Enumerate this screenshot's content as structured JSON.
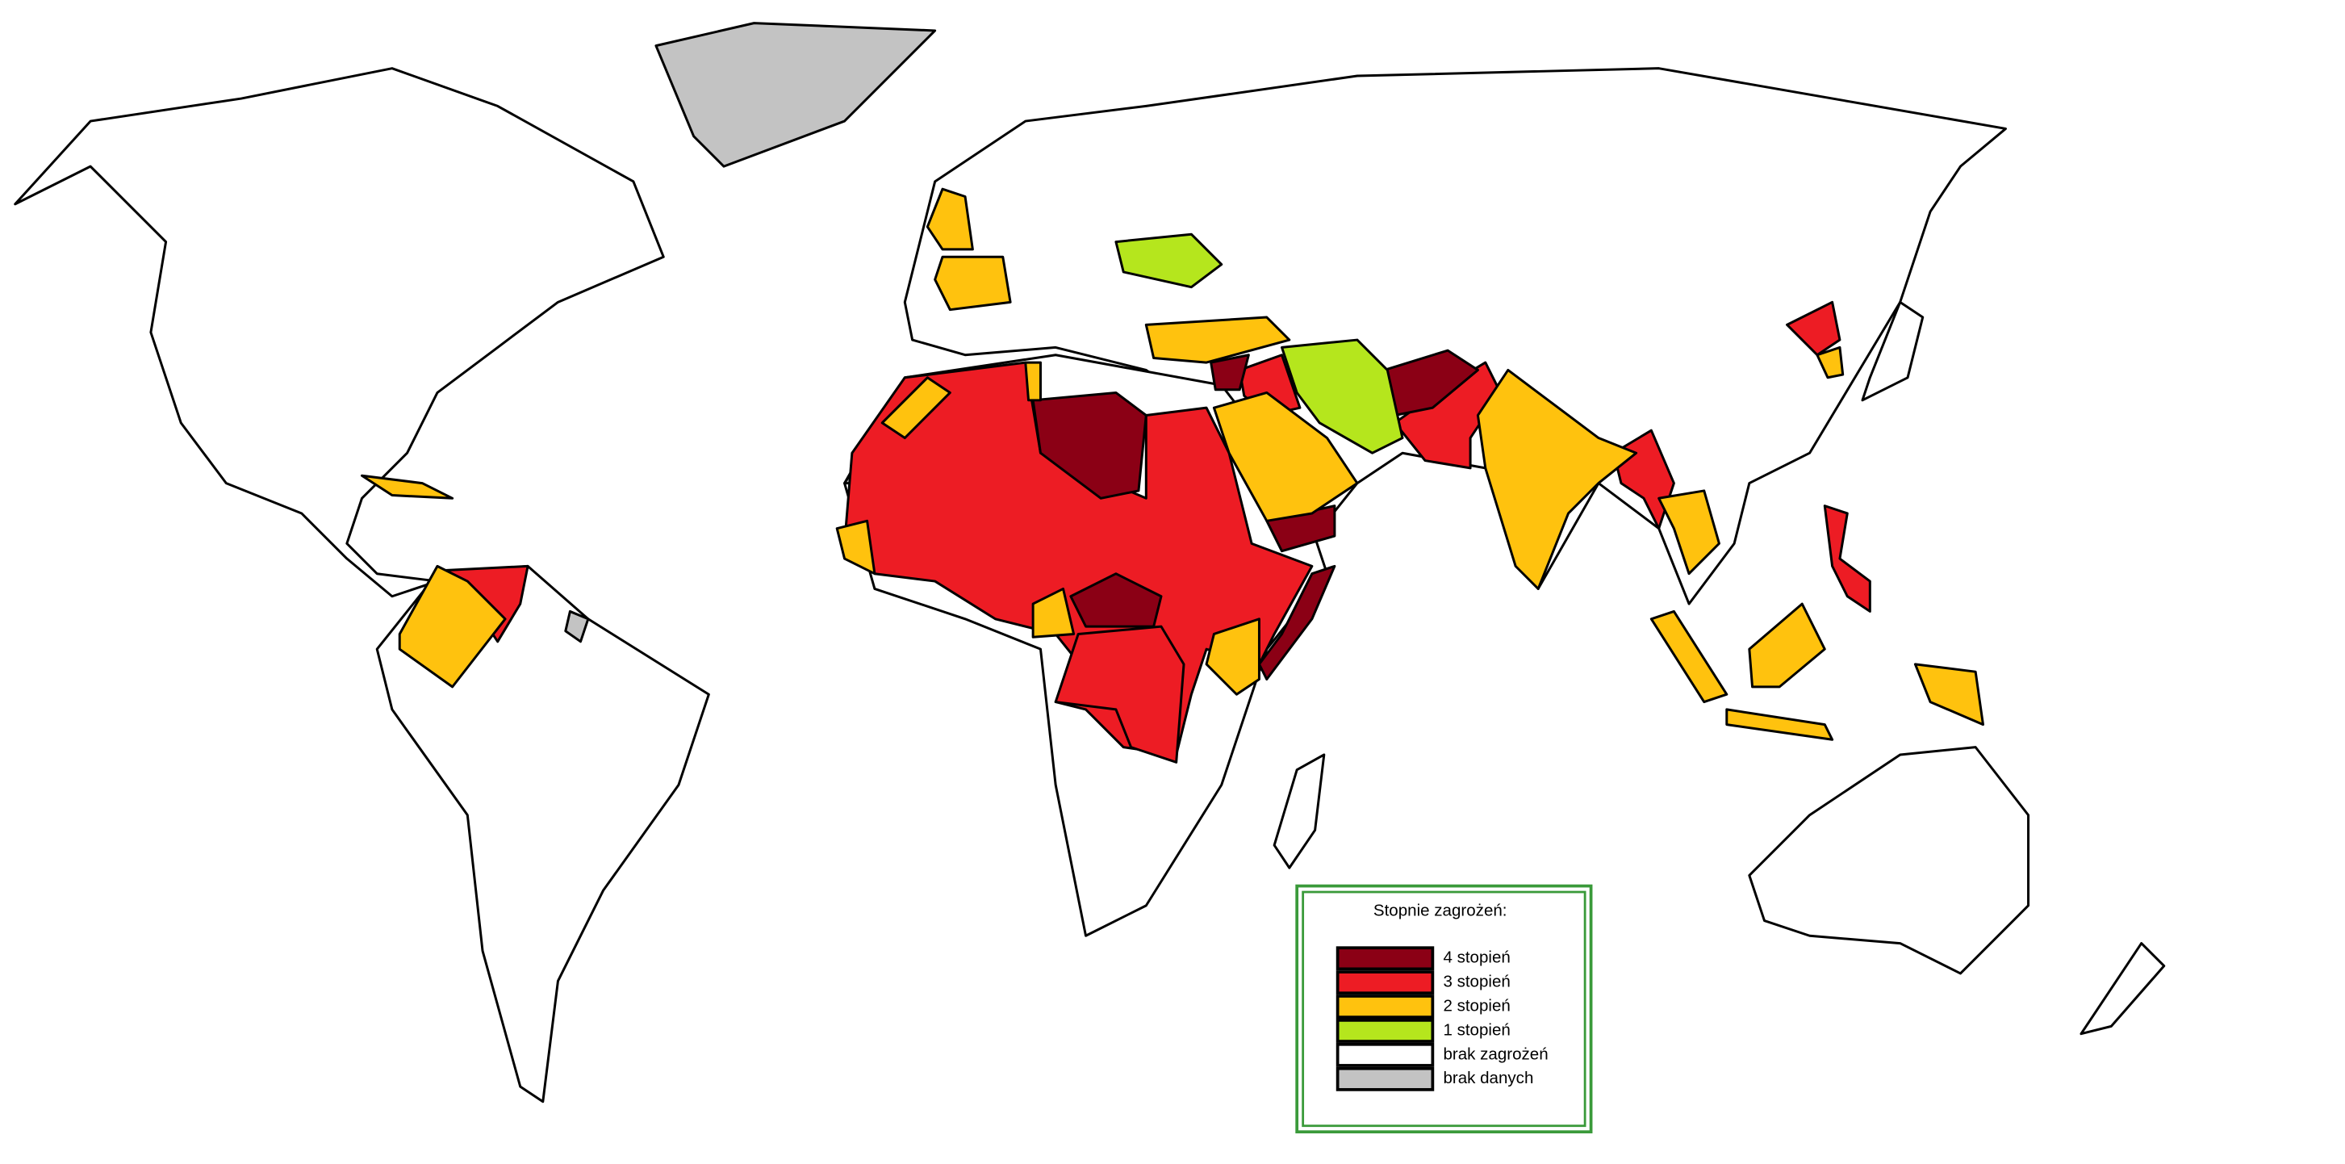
{
  "legend": {
    "title": "Stopnie zagrożeń:",
    "items": [
      {
        "label": "4 stopień",
        "color": "#8b0015"
      },
      {
        "label": "3 stopień",
        "color": "#ed1c24"
      },
      {
        "label": "2 stopień",
        "color": "#ffc20e"
      },
      {
        "label": "1 stopień",
        "color": "#b5e61d"
      },
      {
        "label": "brak zagrożeń",
        "color": "#ffffff"
      },
      {
        "label": "brak danych",
        "color": "#c3c3c3"
      }
    ]
  }
}
